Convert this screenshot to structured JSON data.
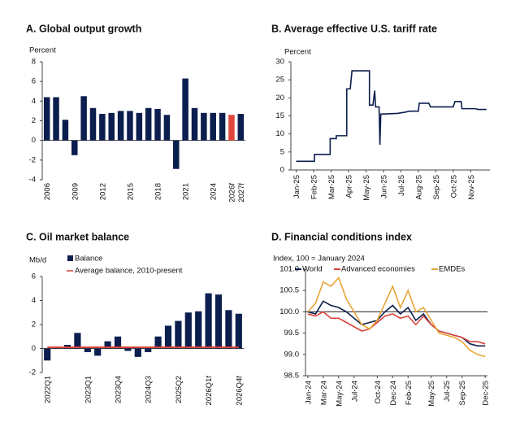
{
  "chart_data": [
    {
      "type": "bar",
      "title": "A. Global output growth",
      "y_label": "Percent",
      "categories": [
        "2006",
        null,
        null,
        "2009",
        null,
        null,
        "2012",
        null,
        null,
        "2015",
        null,
        null,
        "2018",
        null,
        null,
        "2021",
        null,
        null,
        "2024",
        null,
        "2026f",
        "2027f"
      ],
      "values": [
        4.4,
        4.4,
        2.1,
        -1.5,
        4.5,
        3.3,
        2.7,
        2.8,
        3.0,
        3.0,
        2.8,
        3.3,
        3.2,
        2.6,
        -2.9,
        6.3,
        3.3,
        2.8,
        2.8,
        2.8,
        2.6,
        2.7
      ],
      "colors": [
        "#0c1e4e",
        "#0c1e4e",
        "#0c1e4e",
        "#0c1e4e",
        "#0c1e4e",
        "#0c1e4e",
        "#0c1e4e",
        "#0c1e4e",
        "#0c1e4e",
        "#0c1e4e",
        "#0c1e4e",
        "#0c1e4e",
        "#0c1e4e",
        "#0c1e4e",
        "#0c1e4e",
        "#0c1e4e",
        "#0c1e4e",
        "#0c1e4e",
        "#0c1e4e",
        "#0c1e4e",
        "#e0463b",
        "#0c1e4e"
      ],
      "ylim": [
        -4,
        8
      ],
      "yticks": [
        -4,
        -2,
        0,
        2,
        4,
        6,
        8
      ]
    },
    {
      "type": "line",
      "title": "B. Average effective U.S. tariff rate",
      "y_label": "Percent",
      "x": [
        0,
        1.05,
        1.05,
        1.95,
        1.95,
        2.3,
        2.3,
        2.9,
        2.9,
        3.1,
        3.2,
        4.2,
        4.2,
        4.4,
        4.5,
        4.55,
        4.75,
        4.8,
        4.85,
        5.8,
        6.2,
        6.5,
        7.0,
        7.05,
        7.6,
        7.7,
        9.0,
        9.1,
        9.45,
        9.5,
        10.3,
        10.4,
        10.9
      ],
      "series": [
        {
          "name": "Tariff rate",
          "color": "#0c1e4e",
          "values": [
            2.4,
            2.4,
            4.3,
            4.3,
            8.7,
            8.7,
            9.5,
            9.5,
            22.5,
            22.5,
            27.5,
            27.5,
            18,
            18,
            22,
            17.5,
            17.5,
            7,
            15.5,
            15.7,
            16,
            16.3,
            16.3,
            18.5,
            18.5,
            17.5,
            17.5,
            19,
            19,
            17,
            17,
            16.8,
            16.8
          ]
        }
      ],
      "xlim": [
        -0.3,
        11.1
      ],
      "xticks": [
        {
          "value": 0,
          "label": "Jan-25"
        },
        {
          "value": 1,
          "label": "Feb-25"
        },
        {
          "value": 2,
          "label": "Mar-25"
        },
        {
          "value": 3,
          "label": "Apr-25"
        },
        {
          "value": 4,
          "label": "May-25"
        },
        {
          "value": 5,
          "label": "Jun-25"
        },
        {
          "value": 6,
          "label": "Jul-25"
        },
        {
          "value": 7,
          "label": "Aug-25"
        },
        {
          "value": 8,
          "label": "Sep-25"
        },
        {
          "value": 9,
          "label": "Oct-25"
        },
        {
          "value": 10,
          "label": "Nov-25"
        }
      ],
      "ylim": [
        0,
        30
      ],
      "yticks": [
        0,
        5,
        10,
        15,
        20,
        25,
        30
      ]
    },
    {
      "type": "bar",
      "title": "C. Oil market balance",
      "y_label": "Mb/d",
      "categories": [
        "2022Q1",
        null,
        null,
        null,
        "2023Q1",
        null,
        null,
        "2023Q4",
        null,
        null,
        "2024Q3",
        null,
        null,
        "2025Q2",
        null,
        null,
        "2026Q1f",
        null,
        null,
        "2026Q4f"
      ],
      "series": [
        {
          "name": "Balance",
          "type": "bar",
          "color": "#0c1e4e",
          "values": [
            -1.0,
            0.05,
            0.3,
            1.3,
            -0.3,
            -0.6,
            0.6,
            1.0,
            -0.2,
            -0.7,
            -0.3,
            1.0,
            1.9,
            2.3,
            3.0,
            3.1,
            4.6,
            4.5,
            3.2,
            2.9
          ]
        },
        {
          "name": "Average balance, 2010-present",
          "type": "line",
          "color": "#d9433a",
          "values": [
            0.1,
            0.1,
            0.1,
            0.1,
            0.1,
            0.1,
            0.1,
            0.1,
            0.1,
            0.1,
            0.1,
            0.1,
            0.1,
            0.1,
            0.1,
            0.1,
            0.1,
            0.1,
            0.1,
            0.1
          ]
        }
      ],
      "ylim": [
        -2,
        6
      ],
      "yticks": [
        -2,
        0,
        2,
        4,
        6
      ]
    },
    {
      "type": "line",
      "title": "D. Financial conditions index",
      "y_label": "Index, 100 = January 2024",
      "x": [
        0,
        1,
        2,
        3,
        4,
        5,
        6,
        7,
        8,
        9,
        10,
        11,
        12,
        13,
        14,
        15,
        16,
        17,
        18,
        19,
        20,
        21,
        22,
        23
      ],
      "series": [
        {
          "name": "World",
          "color": "#0c1e4e",
          "values": [
            100.0,
            99.95,
            100.25,
            100.15,
            100.1,
            100.0,
            99.85,
            99.7,
            99.75,
            99.8,
            100.0,
            100.15,
            99.95,
            100.1,
            99.8,
            99.95,
            99.7,
            99.55,
            99.5,
            99.45,
            99.4,
            99.25,
            99.2,
            99.2
          ]
        },
        {
          "name": "Advanced economies",
          "color": "#d9433a",
          "values": [
            99.95,
            99.9,
            100.0,
            99.85,
            99.85,
            99.75,
            99.65,
            99.55,
            99.6,
            99.75,
            99.9,
            99.95,
            99.85,
            99.9,
            99.7,
            99.9,
            99.7,
            99.55,
            99.5,
            99.45,
            99.4,
            99.3,
            99.3,
            99.25
          ]
        },
        {
          "name": "EMDEs",
          "color": "#e8a436",
          "values": [
            100.0,
            100.2,
            100.7,
            100.6,
            100.8,
            100.3,
            100.0,
            99.7,
            99.6,
            99.8,
            100.2,
            100.6,
            100.1,
            100.5,
            100.0,
            100.1,
            99.8,
            99.5,
            99.45,
            99.4,
            99.3,
            99.1,
            99.0,
            98.95
          ]
        }
      ],
      "reference_line": 100,
      "xlim": [
        -0.3,
        23.3
      ],
      "xticks": [
        {
          "value": 0,
          "label": "Jan-24"
        },
        {
          "value": 2,
          "label": "Mar-24"
        },
        {
          "value": 4,
          "label": "May-24"
        },
        {
          "value": 6,
          "label": "Jul-24"
        },
        {
          "value": 9,
          "label": "Oct-24"
        },
        {
          "value": 11,
          "label": "Dec-24"
        },
        {
          "value": 13,
          "label": "Feb-25"
        },
        {
          "value": 16,
          "label": "May-25"
        },
        {
          "value": 18,
          "label": "Jul-25"
        },
        {
          "value": 20,
          "label": "Sep-25"
        },
        {
          "value": 23,
          "label": "Dec-25"
        }
      ],
      "ylim": [
        98.5,
        101
      ],
      "yticks": [
        98.5,
        {
          "value": 99,
          "label": "99.0"
        },
        99.5,
        {
          "value": 100,
          "label": "100.0"
        },
        100.5,
        {
          "value": 101,
          "label": "101.0"
        }
      ]
    }
  ]
}
